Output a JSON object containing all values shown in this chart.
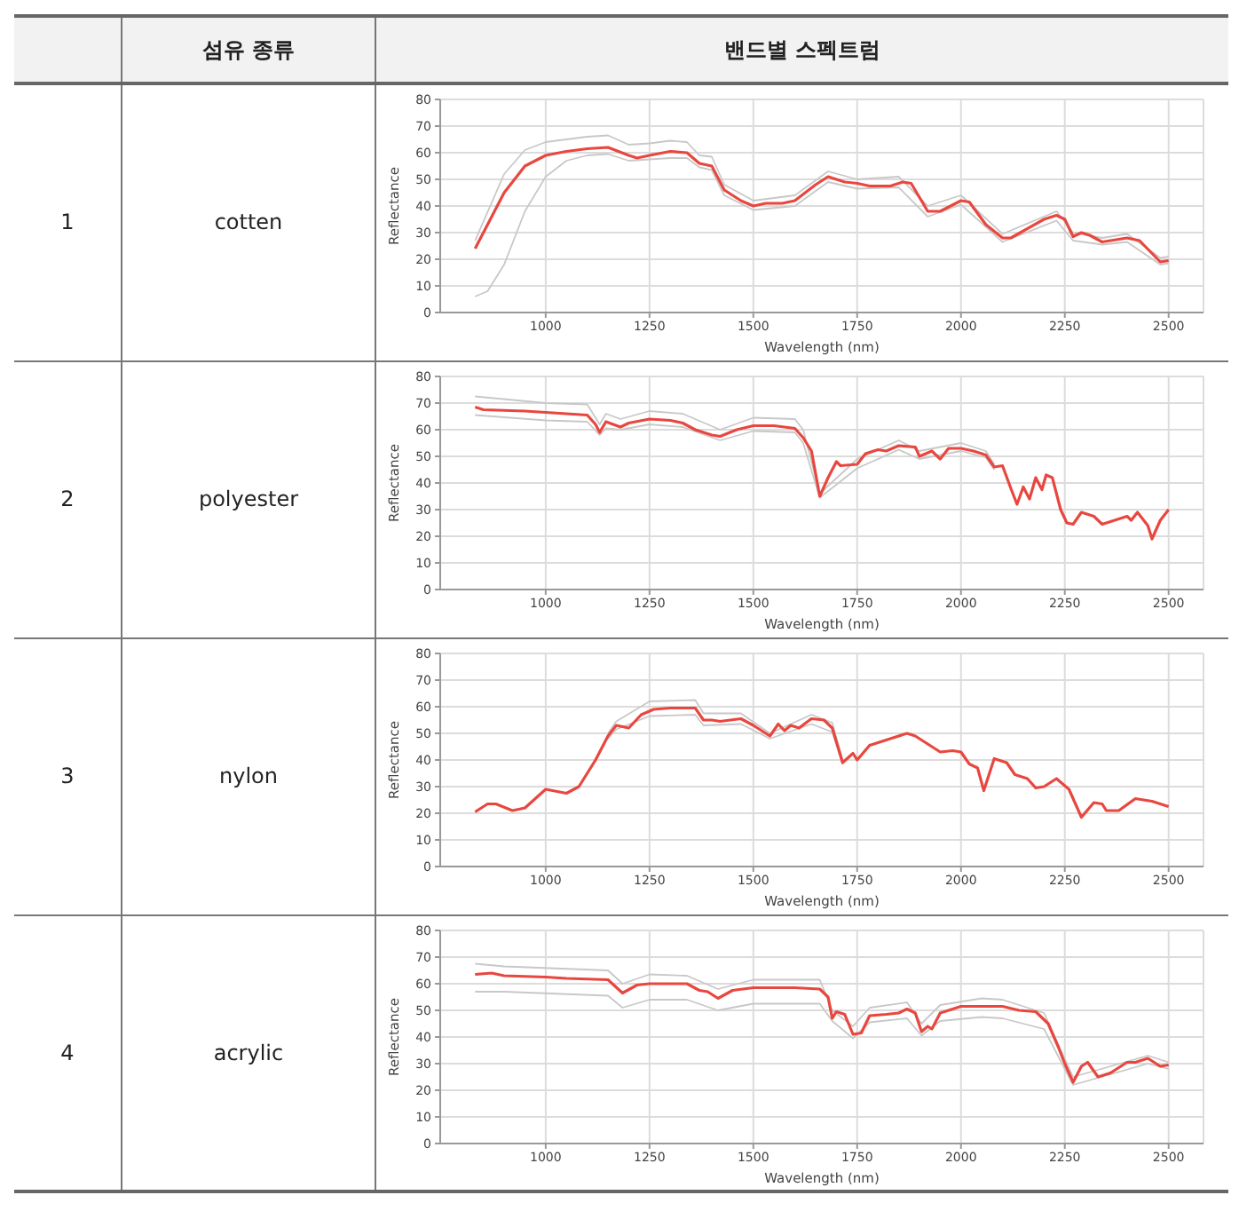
{
  "chart_data": [
    {
      "type": "other",
      "annotations": [
        "섬유 종류",
        "밴드별 스펙트럼"
      ]
    },
    {
      "type": "line",
      "annotations": [
        "1",
        "cotten"
      ],
      "xlabel": "Wavelength (nm)",
      "ylabel": "Reflectance",
      "xlim": [
        746,
        2584
      ],
      "xticks": [
        1000,
        1250,
        1500,
        1750,
        2000,
        2250,
        2500
      ],
      "ylim": [
        0,
        80
      ],
      "yticks": [
        0,
        10,
        20,
        30,
        40,
        50,
        60,
        70,
        80
      ],
      "grid": true,
      "series": [
        {
          "color": "#c8c8c8",
          "x": [
            830,
            900,
            950,
            1000,
            1100,
            1150,
            1200,
            1250,
            1300,
            1340,
            1370,
            1400,
            1430,
            1500,
            1600,
            1680,
            1750,
            1850,
            1920,
            2000,
            2100,
            2230,
            2270,
            2340,
            2400,
            2480,
            2500
          ],
          "values": [
            27,
            52,
            61,
            64,
            66,
            66.5,
            63,
            63.5,
            64.5,
            64,
            59,
            58.5,
            48,
            42,
            44,
            53,
            50,
            51,
            40,
            44,
            29.5,
            38,
            30,
            28,
            29.5,
            20.5,
            21
          ]
        },
        {
          "color": "#c8c8c8",
          "x": [
            830,
            860,
            900,
            950,
            1000,
            1050,
            1100,
            1150,
            1200,
            1250,
            1300,
            1340,
            1370,
            1400,
            1430,
            1500,
            1600,
            1680,
            1750,
            1850,
            1920,
            2000,
            2100,
            2230,
            2270,
            2340,
            2400,
            2480,
            2500
          ],
          "values": [
            6,
            8,
            18,
            38,
            51,
            57,
            59,
            59.5,
            57,
            57.5,
            58,
            58,
            54.5,
            53.5,
            44,
            38.5,
            40,
            49,
            46.5,
            47,
            36,
            40.5,
            26.5,
            34.5,
            27,
            25.5,
            26.5,
            18,
            18.5
          ]
        },
        {
          "color": "#e8473f",
          "x": [
            830,
            850,
            900,
            950,
            1000,
            1050,
            1100,
            1150,
            1200,
            1220,
            1250,
            1300,
            1340,
            1370,
            1400,
            1430,
            1470,
            1500,
            1530,
            1570,
            1600,
            1650,
            1680,
            1700,
            1720,
            1750,
            1780,
            1830,
            1860,
            1880,
            1920,
            1950,
            2000,
            2020,
            2060,
            2100,
            2120,
            2200,
            2230,
            2250,
            2270,
            2290,
            2310,
            2340,
            2400,
            2430,
            2480,
            2500
          ],
          "values": [
            24,
            30,
            45,
            55,
            59,
            60.5,
            61.5,
            62,
            59,
            58,
            59,
            60.5,
            60,
            56,
            55,
            46,
            42,
            40,
            41,
            41,
            42,
            48,
            51,
            50,
            49,
            48.5,
            47.5,
            47.5,
            49,
            48.5,
            38,
            38,
            42,
            41.5,
            33,
            28,
            28,
            35,
            36.5,
            35,
            28.5,
            30,
            29,
            26.5,
            28,
            27,
            19,
            19.5
          ]
        }
      ]
    },
    {
      "type": "line",
      "annotations": [
        "2",
        "polyester"
      ],
      "xlabel": "Wavelength (nm)",
      "ylabel": "Reflectance",
      "xlim": [
        746,
        2584
      ],
      "xticks": [
        1000,
        1250,
        1500,
        1750,
        2000,
        2250,
        2500
      ],
      "ylim": [
        0,
        80
      ],
      "yticks": [
        0,
        10,
        20,
        30,
        40,
        50,
        60,
        70,
        80
      ],
      "grid": true,
      "series": [
        {
          "color": "#c8c8c8",
          "x": [
            830,
            1000,
            1100,
            1130,
            1145,
            1180,
            1250,
            1330,
            1420,
            1500,
            1600,
            1620,
            1660,
            1750,
            1850,
            1900,
            2000,
            2060,
            2080
          ],
          "values": [
            72.5,
            70,
            69.5,
            62,
            66,
            64,
            67,
            66,
            60,
            64.5,
            64,
            60,
            36,
            49,
            56,
            52,
            55,
            52,
            47
          ]
        },
        {
          "color": "#c8c8c8",
          "x": [
            830,
            1000,
            1100,
            1130,
            1145,
            1180,
            1250,
            1330,
            1420,
            1500,
            1600,
            1620,
            1660,
            1750,
            1850,
            1900,
            2000,
            2060,
            2080
          ],
          "values": [
            65.5,
            63.5,
            63,
            58,
            60.5,
            60,
            62,
            61,
            56,
            59.5,
            59,
            55,
            34.5,
            45.5,
            52.5,
            49,
            52,
            49.5,
            45
          ]
        },
        {
          "color": "#e8473f",
          "x": [
            830,
            850,
            950,
            1000,
            1050,
            1100,
            1120,
            1130,
            1145,
            1180,
            1200,
            1250,
            1300,
            1330,
            1360,
            1400,
            1420,
            1460,
            1500,
            1550,
            1600,
            1620,
            1640,
            1660,
            1680,
            1700,
            1710,
            1750,
            1770,
            1800,
            1820,
            1850,
            1890,
            1900,
            1930,
            1950,
            1970,
            2000,
            2030,
            2060,
            2080,
            2100,
            2120,
            2135,
            2150,
            2165,
            2180,
            2195,
            2205,
            2220,
            2240,
            2255,
            2270,
            2290,
            2320,
            2340,
            2370,
            2400,
            2410,
            2425,
            2440,
            2450,
            2460,
            2480,
            2500
          ],
          "values": [
            68.5,
            67.5,
            67,
            66.5,
            66,
            65.5,
            62,
            59,
            63,
            61,
            62.5,
            64,
            63.5,
            62.5,
            60,
            58,
            57.5,
            60,
            61.5,
            61.5,
            60.5,
            57,
            52,
            35,
            42,
            48,
            46.5,
            47,
            51,
            52.5,
            52,
            54,
            53.5,
            50,
            52,
            49,
            53,
            53,
            52,
            50.5,
            46,
            46.5,
            38,
            32,
            38.5,
            34,
            42,
            37.5,
            43,
            42,
            30,
            25,
            24.5,
            29,
            27.5,
            24.5,
            26,
            27.5,
            26,
            29,
            26,
            24,
            19,
            26,
            30
          ]
        }
      ]
    },
    {
      "type": "line",
      "annotations": [
        "3",
        "nylon"
      ],
      "xlabel": "Wavelength (nm)",
      "ylabel": "Reflectance",
      "xlim": [
        746,
        2584
      ],
      "xticks": [
        1000,
        1250,
        1500,
        1750,
        2000,
        2250,
        2500
      ],
      "ylim": [
        0,
        80
      ],
      "yticks": [
        0,
        10,
        20,
        30,
        40,
        50,
        60,
        70,
        80
      ],
      "grid": true,
      "series": [
        {
          "color": "#c8c8c8",
          "x": [
            1150,
            1170,
            1250,
            1360,
            1380,
            1470,
            1540,
            1640,
            1690,
            1715
          ],
          "values": [
            50,
            54.5,
            62,
            62.5,
            57.5,
            57.5,
            50,
            57,
            54,
            40
          ]
        },
        {
          "color": "#c8c8c8",
          "x": [
            1150,
            1170,
            1250,
            1360,
            1380,
            1470,
            1540,
            1640,
            1690,
            1715
          ],
          "values": [
            48,
            51.5,
            56.5,
            57,
            53,
            53.5,
            48,
            53.5,
            50.5,
            38.5
          ]
        },
        {
          "color": "#e8473f",
          "x": [
            830,
            860,
            880,
            920,
            950,
            1000,
            1050,
            1080,
            1120,
            1150,
            1170,
            1200,
            1230,
            1260,
            1300,
            1360,
            1380,
            1400,
            1420,
            1470,
            1500,
            1540,
            1560,
            1575,
            1590,
            1610,
            1640,
            1670,
            1690,
            1715,
            1740,
            1750,
            1780,
            1830,
            1870,
            1890,
            1950,
            1980,
            2000,
            2020,
            2040,
            2055,
            2080,
            2110,
            2130,
            2160,
            2180,
            2200,
            2230,
            2260,
            2290,
            2320,
            2340,
            2350,
            2380,
            2420,
            2460,
            2500
          ],
          "values": [
            20.5,
            23.5,
            23.5,
            21,
            22,
            29,
            27.5,
            30,
            40,
            49,
            53,
            52,
            57,
            59,
            59.5,
            59.5,
            55,
            55,
            54.5,
            55.5,
            53,
            49,
            53.5,
            51,
            53,
            52,
            55.5,
            55,
            52,
            39,
            42.5,
            40,
            45.5,
            48,
            50,
            49,
            43,
            43.5,
            43,
            38.5,
            37,
            28.5,
            40.5,
            39,
            34.5,
            33,
            29.5,
            30,
            33,
            29,
            18.5,
            24,
            23.5,
            21,
            21,
            25.5,
            24.5,
            22.5
          ]
        }
      ]
    },
    {
      "type": "line",
      "annotations": [
        "4",
        "acrylic"
      ],
      "xlabel": "Wavelength (nm)",
      "ylabel": "Reflectance",
      "xlim": [
        746,
        2584
      ],
      "xticks": [
        1000,
        1250,
        1500,
        1750,
        2000,
        2250,
        2500
      ],
      "ylim": [
        0,
        80
      ],
      "yticks": [
        0,
        10,
        20,
        30,
        40,
        50,
        60,
        70,
        80
      ],
      "grid": true,
      "series": [
        {
          "color": "#c8c8c8",
          "x": [
            830,
            900,
            1150,
            1185,
            1250,
            1340,
            1415,
            1500,
            1660,
            1690,
            1740,
            1780,
            1870,
            1905,
            1950,
            2050,
            2100,
            2200,
            2270,
            2450,
            2500
          ],
          "values": [
            67.5,
            66.5,
            65,
            60,
            63.5,
            63,
            58,
            61.5,
            61.5,
            50,
            44,
            51,
            53,
            45,
            52,
            54.5,
            54,
            49,
            25,
            33,
            30.5
          ]
        },
        {
          "color": "#c8c8c8",
          "x": [
            830,
            900,
            1150,
            1185,
            1250,
            1340,
            1415,
            1500,
            1660,
            1690,
            1740,
            1780,
            1870,
            1905,
            1950,
            2050,
            2100,
            2200,
            2270,
            2450,
            2500
          ],
          "values": [
            57,
            57,
            55.5,
            51,
            54,
            54,
            50,
            52.5,
            52.5,
            46,
            39.5,
            45.5,
            47,
            40.5,
            46,
            47.5,
            47,
            43,
            22,
            30,
            28
          ]
        },
        {
          "color": "#e8473f",
          "x": [
            830,
            870,
            900,
            1000,
            1050,
            1150,
            1185,
            1220,
            1250,
            1340,
            1370,
            1390,
            1415,
            1450,
            1500,
            1600,
            1660,
            1680,
            1690,
            1700,
            1720,
            1740,
            1760,
            1780,
            1820,
            1850,
            1870,
            1890,
            1905,
            1920,
            1930,
            1950,
            2000,
            2100,
            2140,
            2180,
            2210,
            2235,
            2250,
            2270,
            2290,
            2305,
            2330,
            2360,
            2400,
            2420,
            2450,
            2480,
            2500
          ],
          "values": [
            63.5,
            64,
            63,
            62.5,
            62,
            61.5,
            56.5,
            59.5,
            60,
            60,
            57.5,
            57,
            54.5,
            57.5,
            58.5,
            58.5,
            58,
            55,
            47,
            49.5,
            48.5,
            41,
            41.5,
            48,
            48.5,
            49,
            50.5,
            49,
            42,
            44,
            43,
            49,
            51.5,
            51.5,
            50,
            49.5,
            45,
            36,
            30,
            23,
            29,
            30.5,
            25,
            26.5,
            30.5,
            30.5,
            32,
            29,
            29.5
          ]
        }
      ]
    }
  ]
}
